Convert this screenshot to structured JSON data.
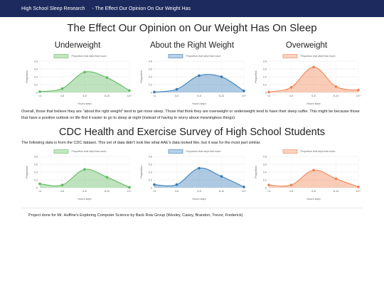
{
  "navbar": {
    "brand": "High School Sleep Research",
    "link": "- The Effect Our Opinion On Our Weight Has"
  },
  "headings": {
    "main": "The Effect Our Opinion on Our Weight Has On Sleep",
    "cdc": "CDC Health and Exercise Survey of High School Students"
  },
  "paragraphs": {
    "summary": "Overall, those that believe they are \"about the right weight\" tend to get more sleep. Those that think they are overweight or underweight tend to have their sleep suffer. This might be because those that have a positive outlook on life find it easier to go to sleep at night (instead of having to worry about meaningless things).",
    "cdc": "The following data is from the CDC dataset. This set of data didn't look like what AAE's data looked like, but it was for the most part similar.",
    "credit": "Project done for Mr. Huffine's Exploring Computer Science by Back Row Group (Wesley, Casey, Brandon, Trevor, Frederick)"
  },
  "chart_titles": [
    "Underweight",
    "About the Right Weight",
    "Overweight"
  ],
  "colors": {
    "navbar": "#1c2a5e",
    "green": "#5cb85c",
    "blue": "#337ab7",
    "orange": "#f0804e"
  },
  "chart_data": [
    {
      "type": "area",
      "title": "Underweight",
      "legend": "Proportion that slept that much",
      "xlabel": "Hours slept",
      "ylabel": "Proportion",
      "categories": [
        "<4",
        "4-6",
        "6-8",
        "8-10",
        "10+"
      ],
      "values": [
        0.02,
        0.1,
        0.52,
        0.38,
        0.05
      ],
      "ylim": [
        0,
        0.8
      ],
      "yticks": [
        0,
        0.2,
        0.4,
        0.6,
        0.8
      ],
      "color": "green"
    },
    {
      "type": "area",
      "title": "About the Right Weight",
      "legend": "Proportion that slept that much",
      "xlabel": "Hours slept",
      "ylabel": "Proportion",
      "categories": [
        "<4",
        "4-6",
        "6-8",
        "8-10",
        "10+"
      ],
      "values": [
        0.01,
        0.08,
        0.43,
        0.4,
        0.04
      ],
      "ylim": [
        0,
        0.8
      ],
      "yticks": [
        0,
        0.2,
        0.4,
        0.6,
        0.8
      ],
      "color": "blue"
    },
    {
      "type": "area",
      "title": "Overweight",
      "legend": "Proportion that slept that much",
      "xlabel": "Hours slept",
      "ylabel": "Proportion",
      "categories": [
        "<4",
        "4-6",
        "6-8",
        "8-10",
        "10+"
      ],
      "values": [
        0.01,
        0.13,
        0.65,
        0.15,
        0.06
      ],
      "ylim": [
        0,
        0.8
      ],
      "yticks": [
        0,
        0.2,
        0.4,
        0.6,
        0.8
      ],
      "color": "orange"
    },
    {
      "type": "area",
      "title": "",
      "legend": "Proportion that slept that much",
      "xlabel": "Hours slept",
      "ylabel": "Proportion",
      "categories": [
        "<4",
        "4-6",
        "6-8",
        "8-10",
        "10+"
      ],
      "values": [
        0.1,
        0.07,
        0.47,
        0.27,
        0.01
      ],
      "ylim": [
        0,
        0.8
      ],
      "yticks": [
        0,
        0.2,
        0.4,
        0.6,
        0.8
      ],
      "color": "green"
    },
    {
      "type": "area",
      "title": "",
      "legend": "Proportion that slept that much",
      "xlabel": "Hours slept",
      "ylabel": "Proportion",
      "categories": [
        "<4",
        "4-6",
        "6-8",
        "8-10",
        "10+"
      ],
      "values": [
        0.08,
        0.08,
        0.5,
        0.29,
        0.02
      ],
      "ylim": [
        0,
        0.8
      ],
      "yticks": [
        0,
        0.2,
        0.4,
        0.6,
        0.8
      ],
      "color": "blue"
    },
    {
      "type": "area",
      "title": "",
      "legend": "Proportion that slept that much",
      "xlabel": "Hours slept",
      "ylabel": "Proportion",
      "categories": [
        "<4",
        "4-6",
        "6-8",
        "8-10",
        "10+"
      ],
      "values": [
        0.07,
        0.07,
        0.45,
        0.23,
        0.02
      ],
      "ylim": [
        0,
        0.8
      ],
      "yticks": [
        0,
        0.2,
        0.4,
        0.6,
        0.8
      ],
      "color": "orange"
    }
  ]
}
